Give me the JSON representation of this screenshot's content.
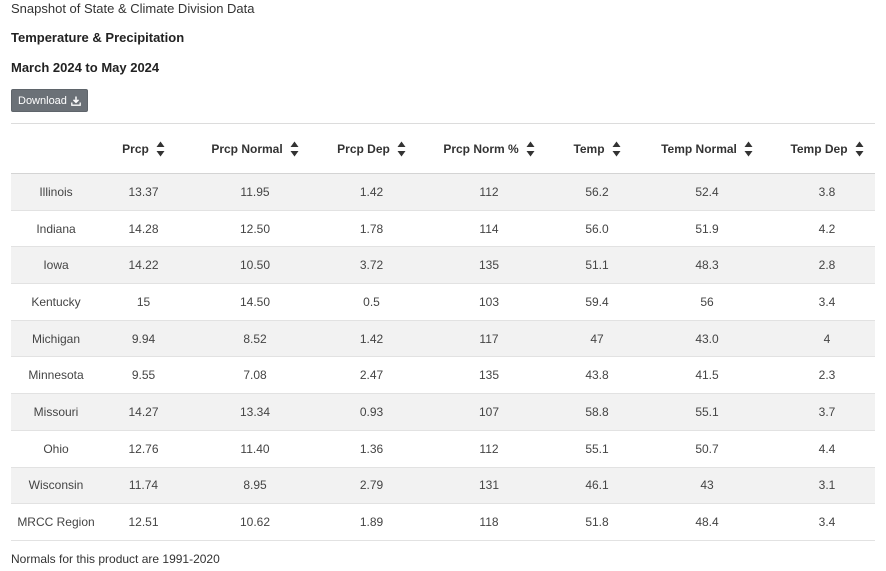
{
  "header": {
    "subtitle": "Snapshot of State & Climate Division Data",
    "title": "Temperature & Precipitation",
    "period": "March 2024 to May 2024"
  },
  "toolbar": {
    "download_label": "Download"
  },
  "table": {
    "columns": [
      "",
      "Prcp",
      "Prcp Normal",
      "Prcp Dep",
      "Prcp Norm %",
      "Temp",
      "Temp Normal",
      "Temp Dep"
    ],
    "rows": [
      [
        "Illinois",
        "13.37",
        "11.95",
        "1.42",
        "112",
        "56.2",
        "52.4",
        "3.8"
      ],
      [
        "Indiana",
        "14.28",
        "12.50",
        "1.78",
        "114",
        "56.0",
        "51.9",
        "4.2"
      ],
      [
        "Iowa",
        "14.22",
        "10.50",
        "3.72",
        "135",
        "51.1",
        "48.3",
        "2.8"
      ],
      [
        "Kentucky",
        "15",
        "14.50",
        "0.5",
        "103",
        "59.4",
        "56",
        "3.4"
      ],
      [
        "Michigan",
        "9.94",
        "8.52",
        "1.42",
        "117",
        "47",
        "43.0",
        "4"
      ],
      [
        "Minnesota",
        "9.55",
        "7.08",
        "2.47",
        "135",
        "43.8",
        "41.5",
        "2.3"
      ],
      [
        "Missouri",
        "14.27",
        "13.34",
        "0.93",
        "107",
        "58.8",
        "55.1",
        "3.7"
      ],
      [
        "Ohio",
        "12.76",
        "11.40",
        "1.36",
        "112",
        "55.1",
        "50.7",
        "4.4"
      ],
      [
        "Wisconsin",
        "11.74",
        "8.95",
        "2.79",
        "131",
        "46.1",
        "43",
        "3.1"
      ],
      [
        "MRCC Region",
        "12.51",
        "10.62",
        "1.89",
        "118",
        "51.8",
        "48.4",
        "3.4"
      ]
    ]
  },
  "footer": {
    "note": "Normals for this product are 1991-2020"
  },
  "colors": {
    "button_bg": "#6b7177",
    "row_stripe": "#f2f2f2"
  },
  "icons": {
    "download": "download-icon",
    "sort": "sort-icon"
  }
}
